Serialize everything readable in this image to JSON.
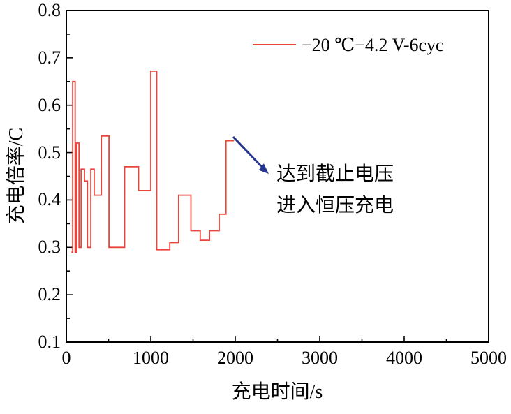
{
  "chart_data": {
    "type": "line",
    "subtype": "step",
    "title": "",
    "xlabel": "充电时间/s",
    "ylabel": "充电倍率/C",
    "xlim": [
      0,
      5000
    ],
    "ylim": [
      0.1,
      0.8
    ],
    "grid": false,
    "legend_position": "top-center-inside",
    "xticks": [
      0,
      1000,
      2000,
      3000,
      4000,
      5000
    ],
    "yticks": [
      0.1,
      0.2,
      0.3,
      0.4,
      0.5,
      0.6,
      0.7,
      0.8
    ],
    "xtick_labels": [
      "0",
      "1000",
      "2000",
      "3000",
      "4000",
      "5000"
    ],
    "ytick_labels": [
      "0.1",
      "0.2",
      "0.3",
      "0.4",
      "0.5",
      "0.6",
      "0.7",
      "0.8"
    ],
    "x_minor_step": 500,
    "y_minor_step": 0.05,
    "series": [
      {
        "name": "−20 ℃−4.2 V-6cyc",
        "color": "#e8463c",
        "steps": [
          [
            60,
            0.29
          ],
          [
            75,
            0.65
          ],
          [
            105,
            0.29
          ],
          [
            120,
            0.52
          ],
          [
            150,
            0.3
          ],
          [
            175,
            0.465
          ],
          [
            215,
            0.44
          ],
          [
            250,
            0.3
          ],
          [
            290,
            0.465
          ],
          [
            330,
            0.41
          ],
          [
            415,
            0.535
          ],
          [
            505,
            0.3
          ],
          [
            690,
            0.47
          ],
          [
            855,
            0.42
          ],
          [
            1000,
            0.672
          ],
          [
            1070,
            0.295
          ],
          [
            1225,
            0.31
          ],
          [
            1330,
            0.41
          ],
          [
            1475,
            0.335
          ],
          [
            1585,
            0.315
          ],
          [
            1695,
            0.335
          ],
          [
            1810,
            0.37
          ],
          [
            1890,
            0.525
          ]
        ],
        "end_time": 1985
      }
    ],
    "legend": {
      "label": "−20 ℃−4.2 V-6cyc",
      "color": "#e8463c"
    },
    "annotation": {
      "line1": "达到截止电压",
      "line2": "进入恒压充电",
      "arrow_color": "#26368c"
    }
  }
}
